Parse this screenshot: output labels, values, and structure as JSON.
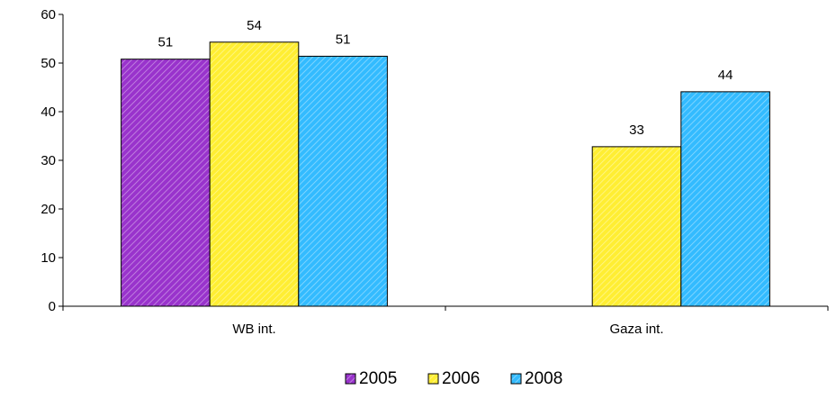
{
  "chart_data": {
    "type": "bar",
    "categories": [
      "WB int.",
      "Gaza int."
    ],
    "series": [
      {
        "name": "2005",
        "values": [
          50.8,
          null
        ],
        "labels": [
          "51",
          ""
        ],
        "color": "#9933CC"
      },
      {
        "name": "2006",
        "values": [
          54.3,
          32.8
        ],
        "labels": [
          "54",
          "33"
        ],
        "color": "#FFEE33"
      },
      {
        "name": "2008",
        "values": [
          51.4,
          44.1
        ],
        "labels": [
          "51",
          "44"
        ],
        "color": "#33BBFF"
      }
    ],
    "y_ticks": [
      "0",
      "10",
      "20",
      "30",
      "40",
      "50",
      "60"
    ],
    "ylim": [
      0,
      60
    ],
    "grid": false,
    "bar_pattern": "diagonal-hatch",
    "legend_position": "bottom-center"
  }
}
